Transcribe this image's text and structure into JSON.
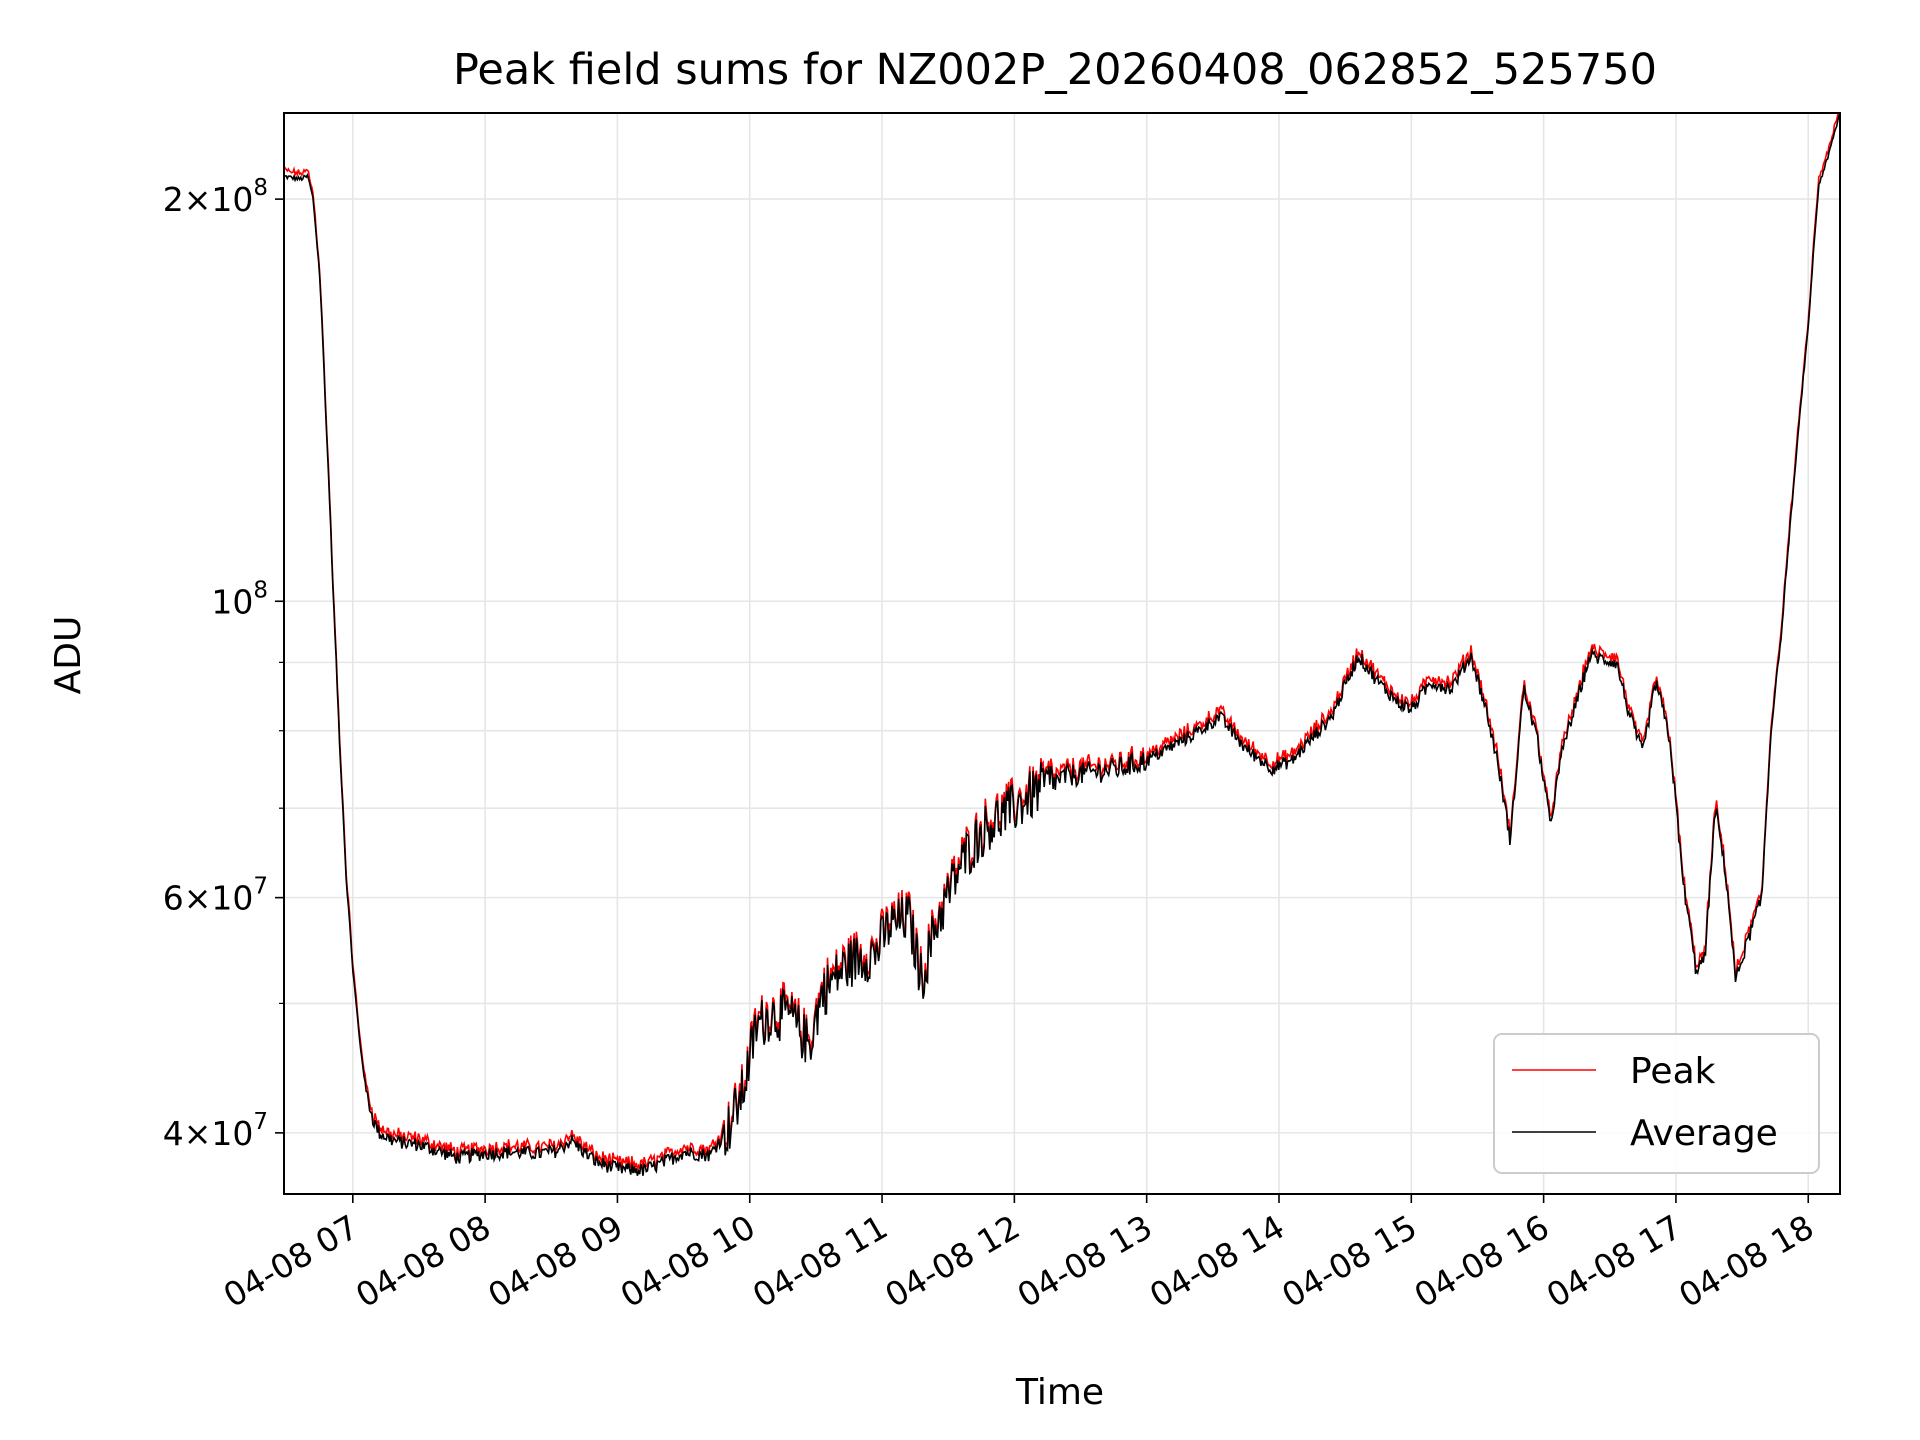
{
  "chart_data": {
    "type": "line",
    "title": "Peak field sums for NZ002P_20260408_062852_525750",
    "xlabel": "Time",
    "ylabel": "ADU",
    "yscale": "log",
    "grid": true,
    "legend_position": "lower-right",
    "xlim": [
      6.48,
      18.24
    ],
    "ylim": [
      36000000,
      232000000
    ],
    "x_ticks": [
      {
        "value": 7,
        "label": "04-08 07"
      },
      {
        "value": 8,
        "label": "04-08 08"
      },
      {
        "value": 9,
        "label": "04-08 09"
      },
      {
        "value": 10,
        "label": "04-08 10"
      },
      {
        "value": 11,
        "label": "04-08 11"
      },
      {
        "value": 12,
        "label": "04-08 12"
      },
      {
        "value": 13,
        "label": "04-08 13"
      },
      {
        "value": 14,
        "label": "04-08 14"
      },
      {
        "value": 15,
        "label": "04-08 15"
      },
      {
        "value": 16,
        "label": "04-08 16"
      },
      {
        "value": 17,
        "label": "04-08 17"
      },
      {
        "value": 18,
        "label": "04-08 18"
      }
    ],
    "y_major_ticks": [
      {
        "value": 40000000,
        "mantissa": "4",
        "exp": "7"
      },
      {
        "value": 60000000,
        "mantissa": "6",
        "exp": "7"
      },
      {
        "value": 100000000,
        "mantissa": "",
        "exp": "8"
      },
      {
        "value": 200000000,
        "mantissa": "2",
        "exp": "8"
      }
    ],
    "y_minor_ticks": [
      50000000,
      70000000,
      80000000,
      90000000
    ],
    "x_unit": "hour of 2026-04-08",
    "y_unit": "millions of ADU",
    "anchors": [
      [
        6.48,
        208
      ],
      [
        6.6,
        207
      ],
      [
        6.66,
        208
      ],
      [
        6.7,
        200
      ],
      [
        6.75,
        175
      ],
      [
        6.8,
        135
      ],
      [
        6.85,
        102
      ],
      [
        6.9,
        78
      ],
      [
        6.95,
        62
      ],
      [
        7.0,
        53
      ],
      [
        7.05,
        47
      ],
      [
        7.1,
        43
      ],
      [
        7.15,
        41
      ],
      [
        7.2,
        40
      ],
      [
        7.3,
        39.5
      ],
      [
        7.4,
        39.3
      ],
      [
        7.5,
        39.2
      ],
      [
        7.6,
        38.9
      ],
      [
        7.7,
        38.6
      ],
      [
        7.8,
        38.3
      ],
      [
        7.9,
        38.5
      ],
      [
        8.0,
        38.6
      ],
      [
        8.2,
        38.7
      ],
      [
        8.4,
        38.6
      ],
      [
        8.55,
        38.8
      ],
      [
        8.65,
        39.5
      ],
      [
        8.75,
        38.7
      ],
      [
        8.85,
        38.0
      ],
      [
        9.0,
        37.6
      ],
      [
        9.2,
        37.5
      ],
      [
        9.35,
        38.0
      ],
      [
        9.5,
        38.7
      ],
      [
        9.7,
        38.5
      ],
      [
        9.85,
        40.5
      ],
      [
        9.95,
        43
      ],
      [
        10.05,
        48
      ],
      [
        10.15,
        49
      ],
      [
        10.3,
        49
      ],
      [
        10.45,
        46.5
      ],
      [
        10.55,
        51
      ],
      [
        10.7,
        53
      ],
      [
        10.8,
        54
      ],
      [
        10.95,
        54.5
      ],
      [
        11.05,
        57
      ],
      [
        11.2,
        58
      ],
      [
        11.3,
        52
      ],
      [
        11.4,
        57
      ],
      [
        11.55,
        62
      ],
      [
        11.65,
        65
      ],
      [
        11.8,
        68
      ],
      [
        12.0,
        70
      ],
      [
        12.2,
        72.5
      ],
      [
        12.4,
        74
      ],
      [
        12.6,
        74.5
      ],
      [
        12.8,
        75
      ],
      [
        13.0,
        76
      ],
      [
        13.2,
        78
      ],
      [
        13.4,
        80
      ],
      [
        13.55,
        82
      ],
      [
        13.75,
        77.5
      ],
      [
        13.95,
        75
      ],
      [
        14.1,
        76
      ],
      [
        14.25,
        79
      ],
      [
        14.4,
        82
      ],
      [
        14.6,
        91
      ],
      [
        14.75,
        87
      ],
      [
        14.9,
        84
      ],
      [
        15.0,
        83
      ],
      [
        15.15,
        87
      ],
      [
        15.3,
        86
      ],
      [
        15.45,
        91
      ],
      [
        15.55,
        84
      ],
      [
        15.65,
        76
      ],
      [
        15.75,
        66
      ],
      [
        15.85,
        86
      ],
      [
        15.95,
        79
      ],
      [
        16.05,
        68
      ],
      [
        16.15,
        78
      ],
      [
        16.25,
        84
      ],
      [
        16.35,
        91
      ],
      [
        16.55,
        90
      ],
      [
        16.65,
        82
      ],
      [
        16.75,
        77
      ],
      [
        16.85,
        87
      ],
      [
        16.95,
        79
      ],
      [
        17.05,
        62
      ],
      [
        17.15,
        53
      ],
      [
        17.22,
        54
      ],
      [
        17.3,
        70
      ],
      [
        17.38,
        62
      ],
      [
        17.45,
        52
      ],
      [
        17.55,
        56
      ],
      [
        17.65,
        60
      ],
      [
        17.72,
        80
      ],
      [
        17.8,
        95
      ],
      [
        17.9,
        125
      ],
      [
        18.0,
        160
      ],
      [
        18.08,
        205
      ],
      [
        18.15,
        215
      ],
      [
        18.24,
        232
      ]
    ],
    "series": [
      {
        "name": "Peak",
        "color": "#ff0000"
      },
      {
        "name": "Average",
        "color": "#000000"
      }
    ]
  }
}
